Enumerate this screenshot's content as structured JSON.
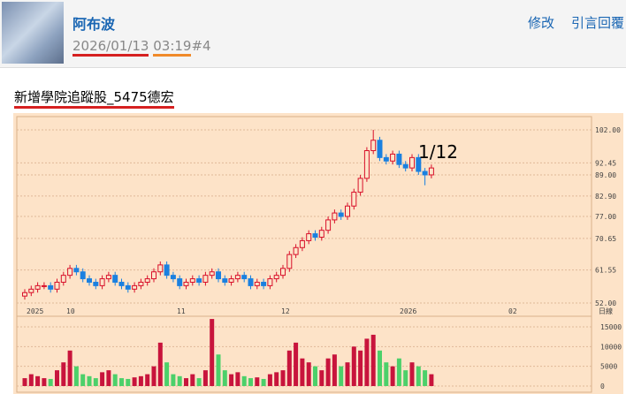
{
  "post": {
    "author": "阿布波",
    "date": "2026/01/13",
    "time": "03:19",
    "number": "#4",
    "actions": [
      "修改",
      "引言回覆"
    ],
    "title": "新增學院追蹤股_5475德宏",
    "image": {
      "annotation": "1/12",
      "price_ticks": [
        {
          "value": 102,
          "label": "102.00"
        },
        {
          "value": 92.45,
          "label": "92.45"
        },
        {
          "value": 89,
          "label": "89.00"
        },
        {
          "value": 82.9,
          "label": "82.90"
        },
        {
          "value": 77,
          "label": "77.00"
        },
        {
          "value": 70.65,
          "label": "70.65"
        },
        {
          "value": 61.55,
          "label": "61.55"
        },
        {
          "value": 52,
          "label": "52.00"
        }
      ],
      "x_labels": [
        "2025",
        "10",
        "11",
        "12",
        "2026",
        "02"
      ],
      "period_label": "日線",
      "candles": [
        [
          54,
          56,
          53,
          55
        ],
        [
          55,
          57,
          54,
          56
        ],
        [
          56,
          58,
          55,
          57
        ],
        [
          57,
          58,
          56,
          57
        ],
        [
          57,
          58,
          55,
          56
        ],
        [
          56,
          59,
          55,
          58
        ],
        [
          58,
          61,
          57,
          60
        ],
        [
          60,
          63,
          59,
          62
        ],
        [
          62,
          63,
          60,
          61
        ],
        [
          61,
          62,
          58,
          59
        ],
        [
          59,
          60,
          57,
          58
        ],
        [
          58,
          59,
          56,
          57
        ],
        [
          57,
          60,
          56,
          59
        ],
        [
          59,
          61,
          58,
          60
        ],
        [
          60,
          61,
          57,
          58
        ],
        [
          58,
          59,
          56,
          57
        ],
        [
          57,
          58,
          55,
          56
        ],
        [
          56,
          58,
          55,
          57
        ],
        [
          57,
          59,
          56,
          58
        ],
        [
          58,
          60,
          57,
          59
        ],
        [
          59,
          62,
          58,
          61
        ],
        [
          61,
          64,
          60,
          63
        ],
        [
          63,
          64,
          59,
          60
        ],
        [
          60,
          61,
          58,
          59
        ],
        [
          59,
          60,
          56,
          57
        ],
        [
          57,
          59,
          56,
          58
        ],
        [
          58,
          60,
          57,
          59
        ],
        [
          59,
          60,
          57,
          58
        ],
        [
          58,
          61,
          57,
          60
        ],
        [
          60,
          62,
          59,
          61
        ],
        [
          61,
          62,
          58,
          59
        ],
        [
          59,
          60,
          57,
          58
        ],
        [
          58,
          60,
          57,
          59
        ],
        [
          59,
          61,
          58,
          60
        ],
        [
          60,
          61,
          58,
          59
        ],
        [
          59,
          60,
          56,
          57
        ],
        [
          57,
          59,
          56,
          58
        ],
        [
          58,
          59,
          56,
          57
        ],
        [
          57,
          60,
          56,
          59
        ],
        [
          59,
          61,
          58,
          60
        ],
        [
          60,
          63,
          59,
          62
        ],
        [
          62,
          67,
          61,
          66
        ],
        [
          66,
          69,
          65,
          68
        ],
        [
          68,
          71,
          67,
          70
        ],
        [
          70,
          73,
          69,
          72
        ],
        [
          72,
          73,
          70,
          71
        ],
        [
          71,
          74,
          70,
          73
        ],
        [
          73,
          77,
          72,
          76
        ],
        [
          76,
          79,
          75,
          78
        ],
        [
          78,
          79,
          76,
          77
        ],
        [
          77,
          81,
          76,
          80
        ],
        [
          80,
          85,
          79,
          84
        ],
        [
          84,
          89,
          83,
          88
        ],
        [
          88,
          97,
          87,
          96
        ],
        [
          96,
          102,
          95,
          99
        ],
        [
          99,
          100,
          93,
          94
        ],
        [
          94,
          95,
          92,
          93
        ],
        [
          93,
          96,
          92,
          95
        ],
        [
          95,
          96,
          91,
          92
        ],
        [
          92,
          93,
          90,
          91
        ],
        [
          91,
          95,
          90,
          94
        ],
        [
          94,
          95,
          89,
          90
        ],
        [
          90,
          91,
          86,
          89
        ],
        [
          89,
          92,
          88,
          91
        ]
      ],
      "volume": [
        2000,
        3000,
        2500,
        2000,
        1800,
        4000,
        6000,
        9000,
        5000,
        3000,
        2500,
        2000,
        3500,
        4000,
        3000,
        2000,
        1800,
        2200,
        2500,
        3000,
        5000,
        11000,
        6000,
        3000,
        2500,
        2000,
        3000,
        2000,
        4000,
        17000,
        8000,
        4000,
        3000,
        3500,
        2500,
        2000,
        2200,
        1800,
        3000,
        3500,
        4000,
        9000,
        11000,
        7000,
        6000,
        5000,
        4000,
        7000,
        8000,
        5000,
        6000,
        10000,
        9000,
        12000,
        13000,
        9000,
        6000,
        5000,
        7000,
        4000,
        6000,
        5000,
        4000,
        3000
      ],
      "volume_ticks": [
        15000,
        10000,
        5000,
        0
      ]
    }
  }
}
